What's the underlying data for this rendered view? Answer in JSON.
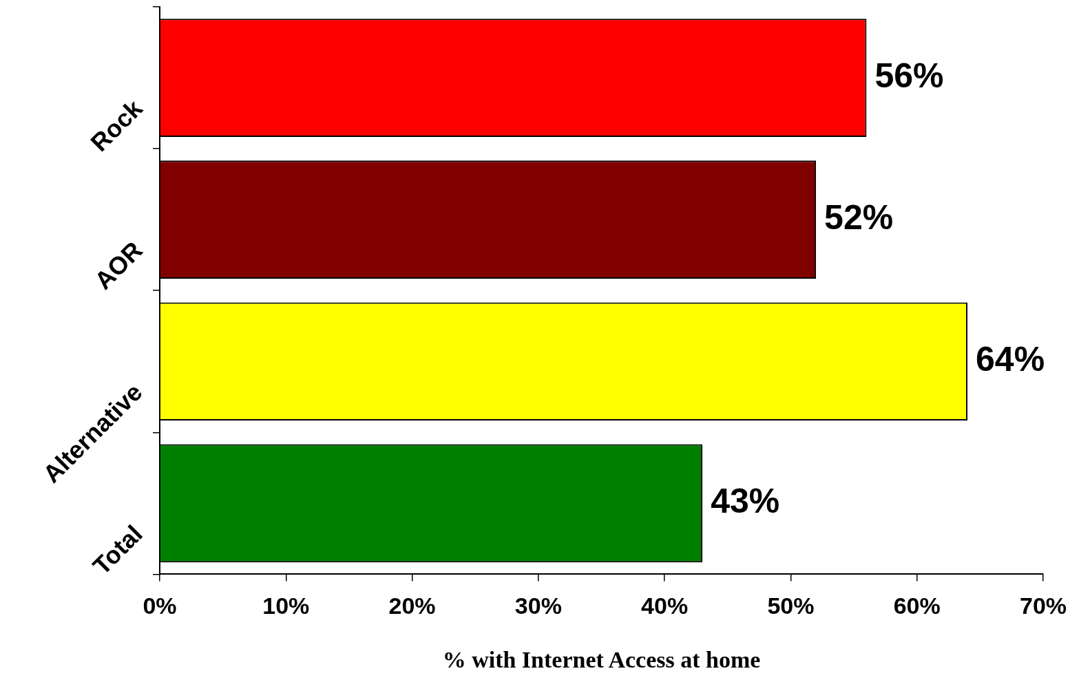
{
  "chart_data": {
    "type": "bar",
    "orientation": "horizontal",
    "xlabel": "% with Internet Access at home",
    "categories": [
      "Rock",
      "AOR",
      "Alternative",
      "Total"
    ],
    "values": [
      56,
      52,
      64,
      43
    ],
    "colors": [
      "#ff0000",
      "#800000",
      "#ffff00",
      "#008000"
    ],
    "value_labels": [
      "56%",
      "52%",
      "64%",
      "43%"
    ],
    "xlim": [
      0,
      70
    ],
    "xticks": [
      {
        "value": 0,
        "label": "0%"
      },
      {
        "value": 10,
        "label": "10%"
      },
      {
        "value": 20,
        "label": "20%"
      },
      {
        "value": 30,
        "label": "30%"
      },
      {
        "value": 40,
        "label": "40%"
      },
      {
        "value": 50,
        "label": "50%"
      },
      {
        "value": 60,
        "label": "60%"
      },
      {
        "value": 70,
        "label": "70%"
      }
    ],
    "grid": false,
    "legend": false
  }
}
